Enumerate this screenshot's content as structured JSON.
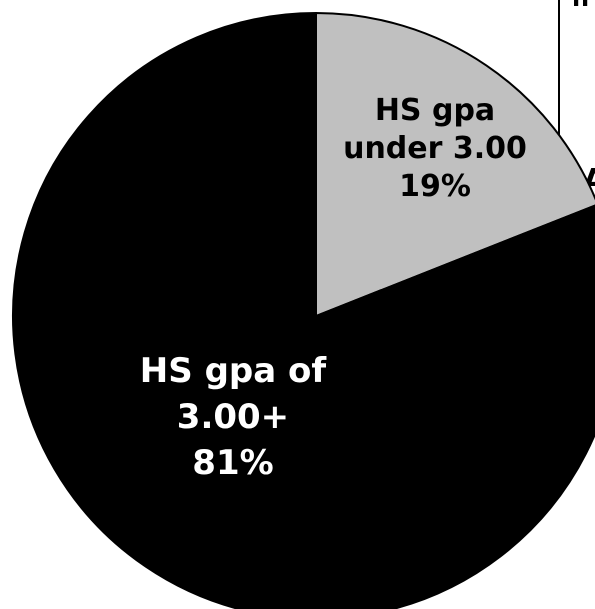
{
  "chart_data": {
    "type": "pie",
    "slices": [
      {
        "label_lines": [
          "HS gpa",
          "under 3.00",
          "19%"
        ],
        "value": 19,
        "color": "#c0c0c0",
        "label_color": "#000000"
      },
      {
        "label_lines": [
          "HS gpa of",
          "3.00+",
          "81%"
        ],
        "value": 81,
        "color": "#000000",
        "label_color": "#ffffff"
      }
    ],
    "start_angle_deg": 0,
    "direction": "clockwise",
    "edge_color": "#000000",
    "partially_visible_text": [
      "A",
      "?"
    ]
  }
}
